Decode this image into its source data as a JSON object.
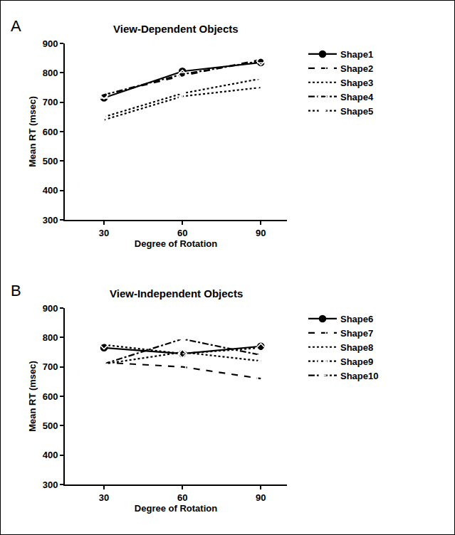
{
  "chart_data": [
    {
      "type": "line",
      "panel": "A",
      "title": "View-Dependent Objects",
      "x_label": "Degree of Rotation",
      "y_label": "Mean RT (msec)",
      "x": [
        30,
        60,
        90
      ],
      "series": [
        {
          "name": "Shape1",
          "color": "#000000",
          "marker": "circle",
          "line_style": "solid",
          "values": [
            715,
            805,
            835
          ]
        },
        {
          "name": "Shape2",
          "color": "#000000",
          "marker": "square-open",
          "line_style": "dash",
          "values": [
            725,
            790,
            845
          ]
        },
        {
          "name": "Shape3",
          "color": "#000000",
          "marker": "triangle-up-open",
          "line_style": "dot",
          "values": [
            640,
            720,
            750
          ]
        },
        {
          "name": "Shape4",
          "color": "#000000",
          "marker": "diamond-open",
          "line_style": "dashdot",
          "values": [
            725,
            795,
            840
          ]
        },
        {
          "name": "Shape5",
          "color": "#000000",
          "marker": "asterisk-open",
          "line_style": "dot",
          "values": [
            650,
            730,
            780
          ]
        }
      ],
      "xlim": [
        15,
        100
      ],
      "xticks": [
        30,
        60,
        90
      ],
      "ylim": [
        300,
        900
      ],
      "yticks": [
        300,
        400,
        500,
        600,
        700,
        800,
        900
      ],
      "grid": false,
      "legend": "right"
    },
    {
      "type": "line",
      "panel": "B",
      "title": "View-Independent Objects",
      "x_label": "Degree of Rotation",
      "y_label": "Mean RT (msec)",
      "x": [
        30,
        60,
        90
      ],
      "series": [
        {
          "name": "Shape6",
          "color": "#000000",
          "marker": "circle",
          "line_style": "solid",
          "values": [
            765,
            745,
            770
          ]
        },
        {
          "name": "Shape7",
          "color": "#000000",
          "marker": "square-open",
          "line_style": "dash",
          "values": [
            715,
            700,
            660
          ]
        },
        {
          "name": "Shape8",
          "color": "#000000",
          "marker": "triangle-up-open",
          "line_style": "dot",
          "values": [
            710,
            750,
            720
          ]
        },
        {
          "name": "Shape9",
          "color": "#000000",
          "marker": "diamond-open",
          "line_style": "dot",
          "values": [
            775,
            745,
            765
          ]
        },
        {
          "name": "Shape10",
          "color": "#000000",
          "marker": "asterisk-open",
          "line_style": "dashdot",
          "values": [
            710,
            795,
            740
          ]
        }
      ],
      "xlim": [
        15,
        100
      ],
      "xticks": [
        30,
        60,
        90
      ],
      "ylim": [
        300,
        900
      ],
      "yticks": [
        300,
        400,
        500,
        600,
        700,
        800,
        900
      ],
      "grid": false,
      "legend": "right"
    }
  ]
}
